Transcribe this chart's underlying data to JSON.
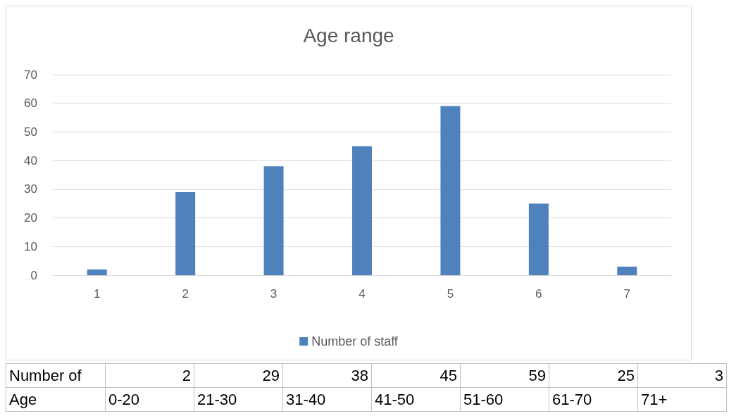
{
  "chart_data": {
    "type": "bar",
    "title": "Age range",
    "categories": [
      "1",
      "2",
      "3",
      "4",
      "5",
      "6",
      "7"
    ],
    "series": [
      {
        "name": "Number of staff",
        "color": "#4f81bd",
        "values": [
          2,
          29,
          38,
          45,
          59,
          25,
          3
        ]
      }
    ],
    "ylim": [
      0,
      70
    ],
    "yticks": [
      0,
      10,
      20,
      30,
      40,
      50,
      60,
      70
    ],
    "grid": "y",
    "legend": "bottom",
    "annotations": [
      "Number of",
      "2",
      "29",
      "38",
      "45",
      "59",
      "25",
      "3",
      "Age",
      "0-20",
      "21-30",
      "31-40",
      "41-50",
      "51-60",
      "61-70",
      "71+"
    ]
  }
}
